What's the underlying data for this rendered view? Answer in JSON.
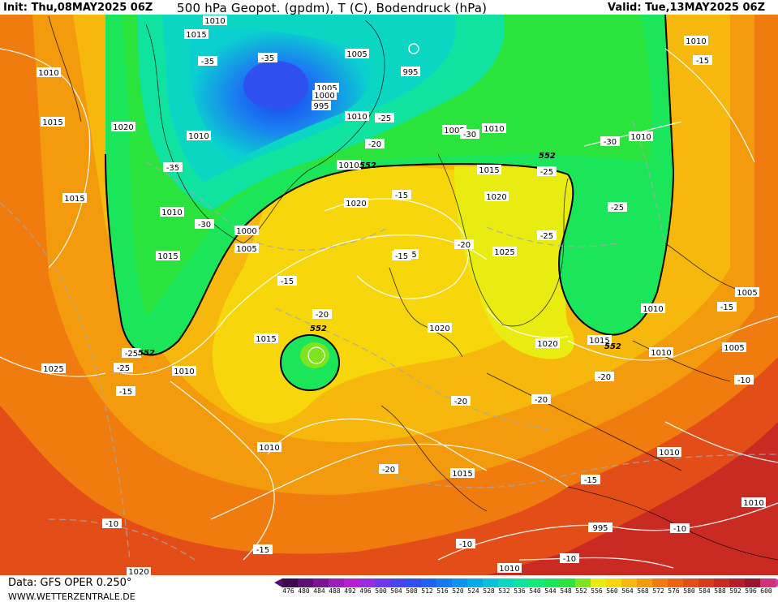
{
  "header": {
    "init": "Init: Thu,08MAY2025 06Z",
    "title": "500 hPa Geopot. (gpdm), T (C), Bodendruck (hPa)",
    "valid": "Valid: Tue,13MAY2025 06Z"
  },
  "footer": {
    "source": "Data: GFS OPER 0.250°",
    "site": "WWW.WETTERZENTRALE.DE"
  },
  "legend": {
    "ticks": [
      "476",
      "480",
      "484",
      "488",
      "492",
      "496",
      "500",
      "504",
      "508",
      "512",
      "516",
      "520",
      "524",
      "528",
      "532",
      "536",
      "540",
      "544",
      "548",
      "552",
      "556",
      "560",
      "564",
      "568",
      "572",
      "576",
      "580",
      "584",
      "588",
      "592",
      "596",
      "600"
    ],
    "colors": [
      "#3d0a4e",
      "#5b0f73",
      "#7a1596",
      "#9b1cb8",
      "#b81ecf",
      "#9a2be0",
      "#6e38e8",
      "#4a44ee",
      "#2f4ff0",
      "#1f63f0",
      "#1579f0",
      "#0c92ef",
      "#07aae8",
      "#08c2dc",
      "#0bd6c4",
      "#10e3a0",
      "#14e87a",
      "#1be65a",
      "#2ae33c",
      "#7ee41e",
      "#e8ec10",
      "#f7d70c",
      "#f6b80c",
      "#f49a0d",
      "#f07c10",
      "#eb6414",
      "#e34e18",
      "#d83c1d",
      "#c92a22",
      "#b51d28",
      "#9c132e",
      "#d0307a"
    ],
    "left_arrow_color": "#5a0a78",
    "right_arrow_color": "#d63ca8"
  },
  "map": {
    "contour_552": "552",
    "pressure_labels": [
      "1010",
      "1015",
      "1010",
      "1005",
      "995",
      "1005",
      "1000",
      "995",
      "1010",
      "1005",
      "1010",
      "1015",
      "1020",
      "1010",
      "1015",
      "1010",
      "1000",
      "1005",
      "1015",
      "1020",
      "1010",
      "1010",
      "1025",
      "1025",
      "1020",
      "1015",
      "1010",
      "1025",
      "1010",
      "1010",
      "1015",
      "1020",
      "1005",
      "1005",
      "1010",
      "1015",
      "1015",
      "1020",
      "1010",
      "1010",
      "1010",
      "1020",
      "1010",
      "995"
    ],
    "temp_labels": [
      "-35",
      "-35",
      "-25",
      "-20",
      "-30",
      "-35",
      "-30",
      "-25",
      "-25",
      "-15",
      "-15",
      "-25",
      "-20",
      "-20",
      "-25",
      "-15",
      "-25",
      "-20",
      "-20",
      "-20",
      "-15",
      "-15",
      "-20",
      "-10",
      "-15",
      "-10",
      "-10",
      "-10",
      "-15",
      "-30",
      "-15",
      "-10"
    ]
  }
}
